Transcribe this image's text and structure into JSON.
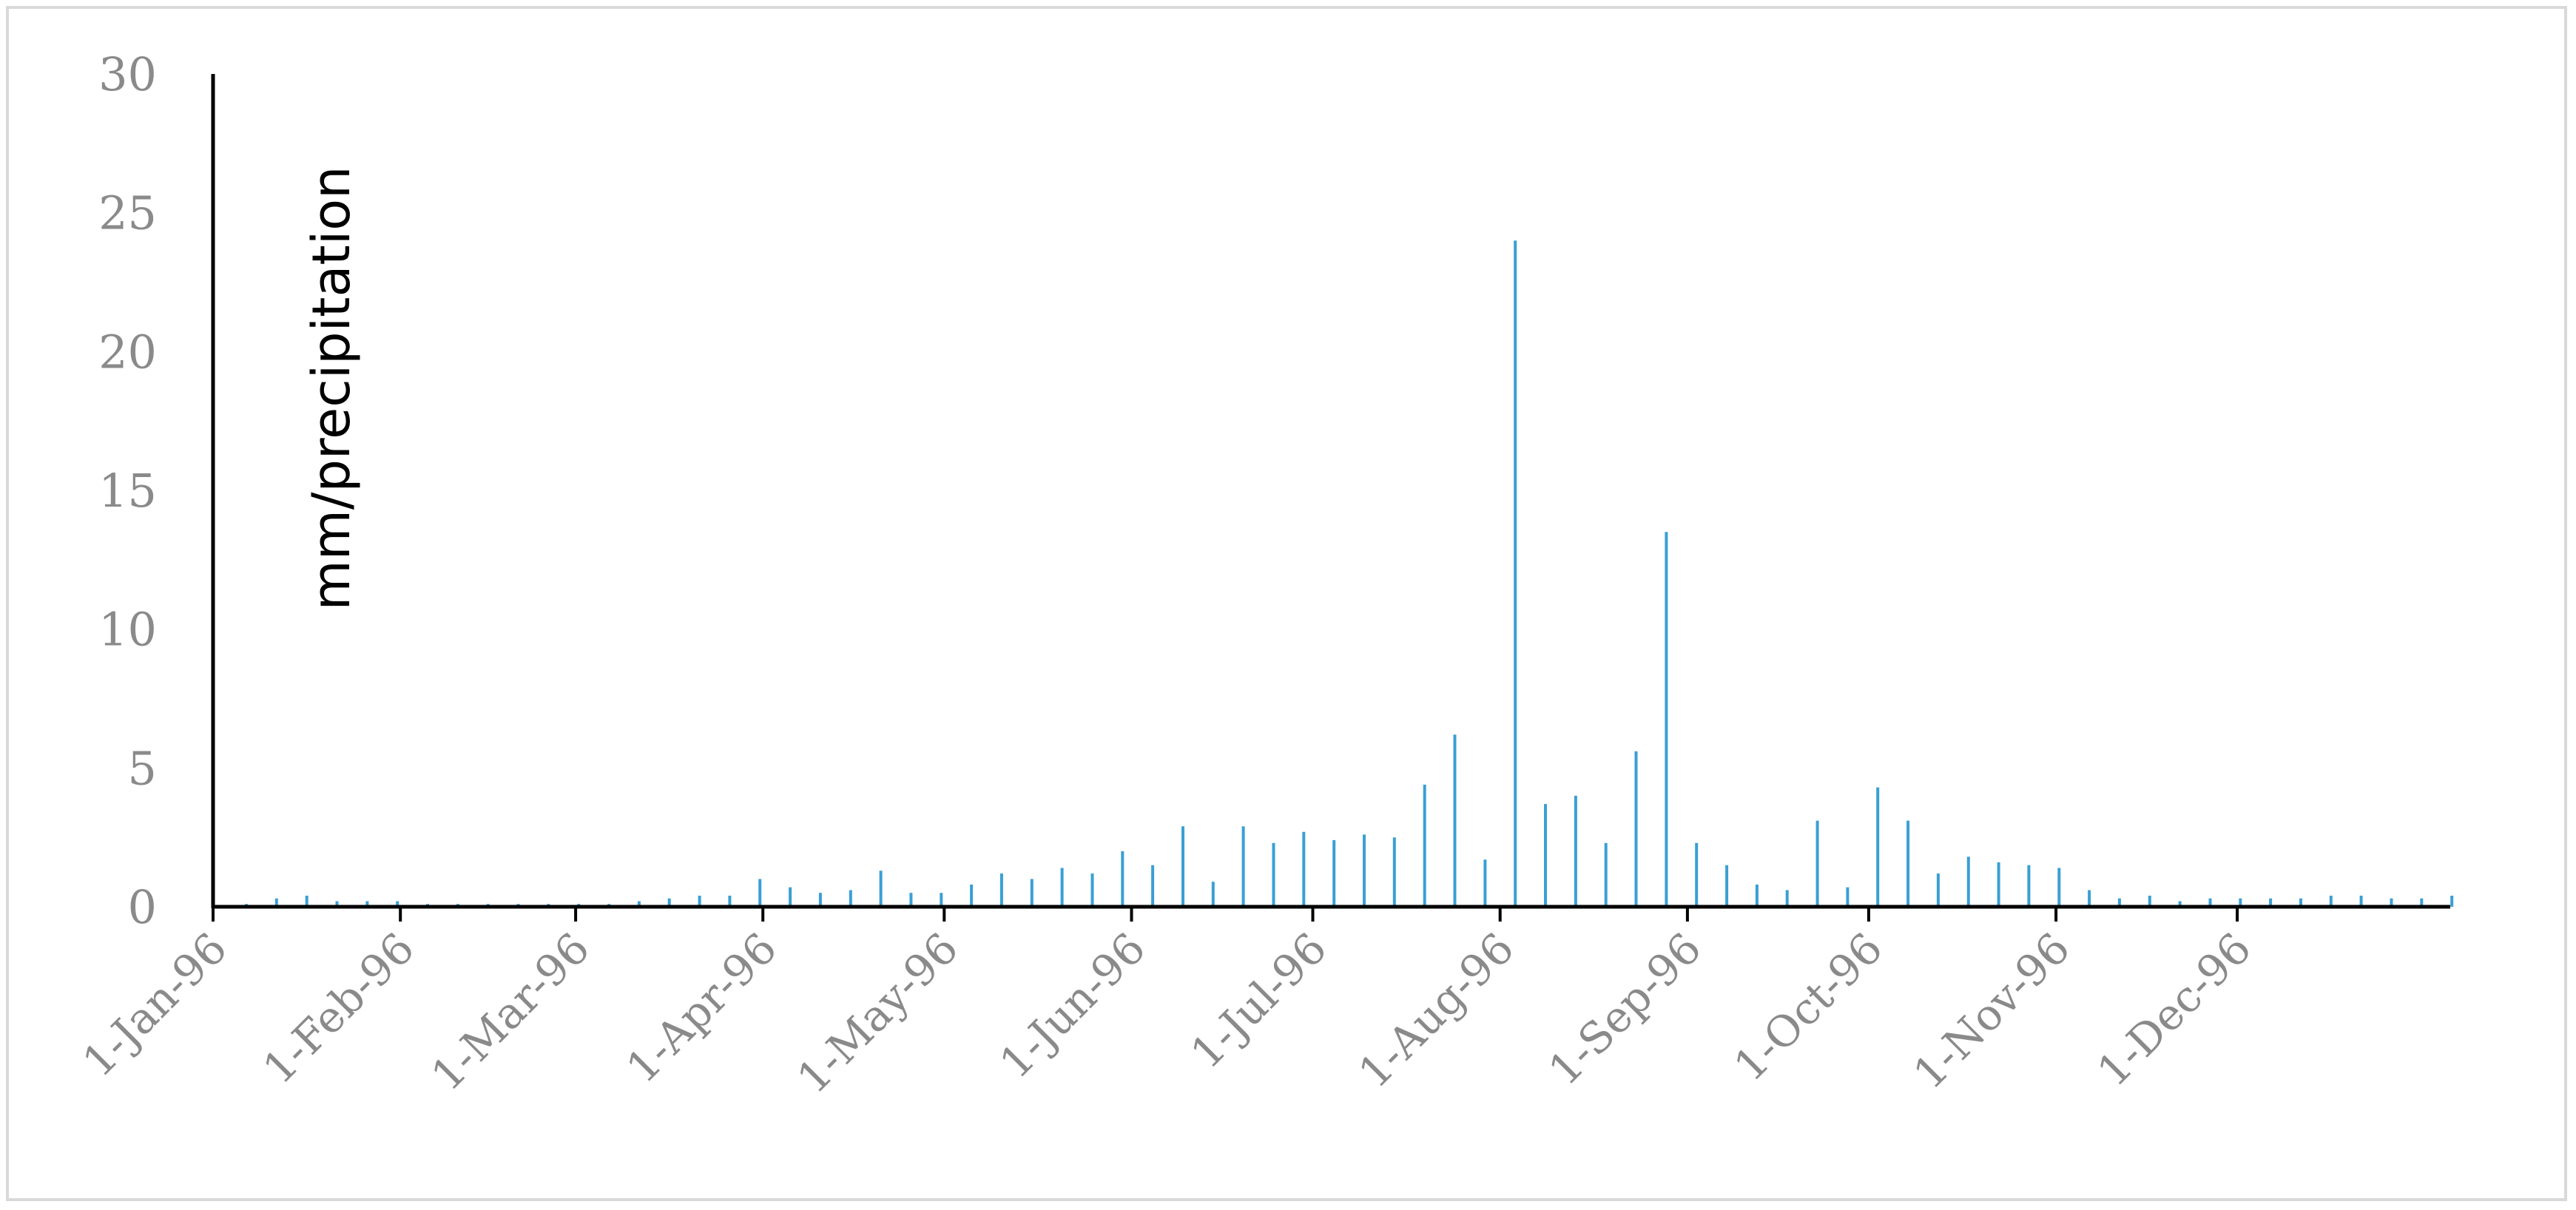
{
  "chart_data": {
    "type": "bar",
    "ylabel": "mm/precipitation",
    "xlabel": "",
    "title": "",
    "ylim": [
      0,
      30
    ],
    "yticks": [
      0,
      5,
      10,
      15,
      20,
      25,
      30
    ],
    "xlim": [
      "1996-01-01",
      "1997-01-05"
    ],
    "xticks": [
      "1-Jan-96",
      "1-Feb-96",
      "1-Mar-96",
      "1-Apr-96",
      "1-May-96",
      "1-Jun-96",
      "1-Jul-96",
      "1-Aug-96",
      "1-Sep-96",
      "1-Oct-96",
      "1-Nov-96",
      "1-Dec-96"
    ],
    "xtick_dates": [
      "1996-01-01",
      "1996-02-01",
      "1996-03-01",
      "1996-04-01",
      "1996-05-01",
      "1996-06-01",
      "1996-07-01",
      "1996-08-01",
      "1996-09-01",
      "1996-10-01",
      "1996-11-01",
      "1996-12-01"
    ],
    "bar_color": "#3a9fd4",
    "axis_color": "#000000",
    "grid": false,
    "legend": "none",
    "x": [
      "1996-01-01",
      "1996-01-06",
      "1996-01-11",
      "1996-01-16",
      "1996-01-21",
      "1996-01-26",
      "1996-01-31",
      "1996-02-05",
      "1996-02-10",
      "1996-02-15",
      "1996-02-20",
      "1996-02-25",
      "1996-03-01",
      "1996-03-06",
      "1996-03-11",
      "1996-03-16",
      "1996-03-21",
      "1996-03-26",
      "1996-03-31",
      "1996-04-05",
      "1996-04-10",
      "1996-04-15",
      "1996-04-20",
      "1996-04-25",
      "1996-04-30",
      "1996-05-05",
      "1996-05-10",
      "1996-05-15",
      "1996-05-20",
      "1996-05-25",
      "1996-05-30",
      "1996-06-04",
      "1996-06-09",
      "1996-06-14",
      "1996-06-19",
      "1996-06-24",
      "1996-06-29",
      "1996-07-04",
      "1996-07-09",
      "1996-07-14",
      "1996-07-19",
      "1996-07-24",
      "1996-07-29",
      "1996-08-03",
      "1996-08-08",
      "1996-08-13",
      "1996-08-18",
      "1996-08-23",
      "1996-08-28",
      "1996-09-02",
      "1996-09-07",
      "1996-09-12",
      "1996-09-17",
      "1996-09-22",
      "1996-09-27",
      "1996-10-02",
      "1996-10-07",
      "1996-10-12",
      "1996-10-17",
      "1996-10-22",
      "1996-10-27",
      "1996-11-01",
      "1996-11-06",
      "1996-11-11",
      "1996-11-16",
      "1996-11-21",
      "1996-11-26",
      "1996-12-01",
      "1996-12-06",
      "1996-12-11",
      "1996-12-16",
      "1996-12-21",
      "1996-12-26",
      "1996-12-31"
    ],
    "values": [
      0.1,
      0.3,
      0.4,
      0.2,
      0.2,
      0.2,
      0.1,
      0.1,
      0.1,
      0.1,
      0.1,
      0.1,
      0.1,
      0.2,
      0.3,
      0.4,
      0.4,
      1.0,
      0.7,
      0.5,
      0.6,
      1.3,
      0.5,
      0.5,
      0.8,
      1.2,
      1.0,
      1.4,
      1.2,
      2.0,
      1.5,
      2.9,
      0.9,
      2.9,
      2.3,
      2.7,
      2.4,
      2.6,
      2.5,
      4.4,
      6.2,
      1.7,
      24.0,
      3.7,
      4.0,
      2.3,
      5.6,
      13.5,
      2.3,
      1.5,
      0.8,
      0.6,
      3.1,
      0.7,
      4.3,
      3.1,
      1.2,
      1.8,
      1.6,
      1.5,
      1.4,
      0.6,
      0.3,
      0.4,
      0.2,
      0.3,
      0.3,
      0.3,
      0.3,
      0.4,
      0.4,
      0.3,
      0.3,
      0.4
    ]
  }
}
